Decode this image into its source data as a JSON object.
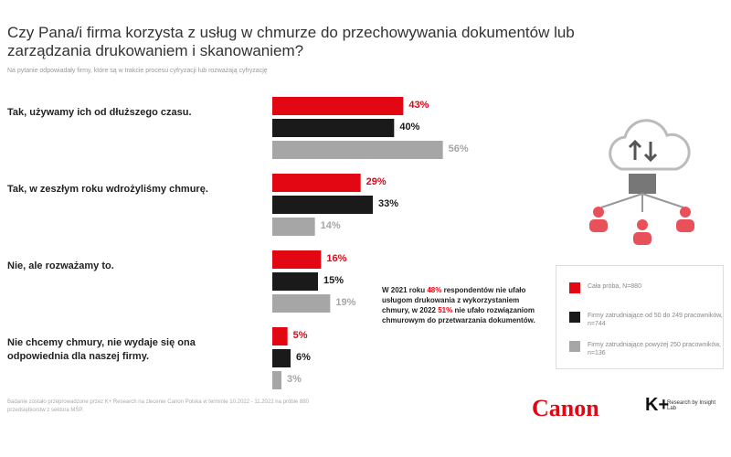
{
  "chart_data": {
    "type": "bar",
    "title": "Czy Pana/i firma korzysta z usług w chmurze do przechowywania dokumentów lub zarządzania drukowaniem i skanowaniem?",
    "subtitle": "Na pytanie odpowiadały firmy, które są w trakcie procesu cyfryzacji lub rozważają cyfryzację",
    "categories": [
      "Tak, używamy ich od dłuższego czasu.",
      "Tak, w zeszłym roku wdrożyliśmy chmurę.",
      "Nie, ale rozważamy to.",
      "Nie chcemy chmury, nie wydaje się ona odpowiednia dla naszej firmy."
    ],
    "series": [
      {
        "name": "Cała próba, N=880",
        "color": "#e30613",
        "label_color": "#e30613",
        "values": [
          43,
          29,
          16,
          5
        ],
        "value_labels": [
          "43%",
          "29%",
          "16%",
          "5%"
        ]
      },
      {
        "name": "Firmy zatrudniające od 50 do 249 pracowników, n=744",
        "color": "#1a1a1a",
        "label_color": "#1a1a1a",
        "values": [
          40,
          33,
          15,
          6
        ],
        "value_labels": [
          "40%",
          "33%",
          "15%",
          "6%"
        ]
      },
      {
        "name": "Firmy zatrudniające powyżej 250 pracowników, n=136",
        "color": "#a6a6a6",
        "label_color": "#a6a6a6",
        "values": [
          56,
          14,
          19,
          3
        ],
        "value_labels": [
          "56%",
          "14%",
          "19%",
          "3%"
        ]
      }
    ],
    "xlim": [
      0,
      60
    ],
    "note": [
      "W 2021 roku ",
      "48%",
      " respondentów nie ufało usługom drukowania z wykorzystaniem chmury, w 2022 ",
      "51%",
      " nie ufało rozwiązaniom chmurowym do przetwarzania dokumentów."
    ],
    "footer": "Badanie zostało przeprowadzone przez K+ Research na zlecenie Canon Polska w terminie 10.2022 - 11.2022 na próbie 880 przedsiębiorstw z sektora MŚP.",
    "logos": [
      "Canon",
      "K+",
      "Research by Insight Lab"
    ]
  }
}
